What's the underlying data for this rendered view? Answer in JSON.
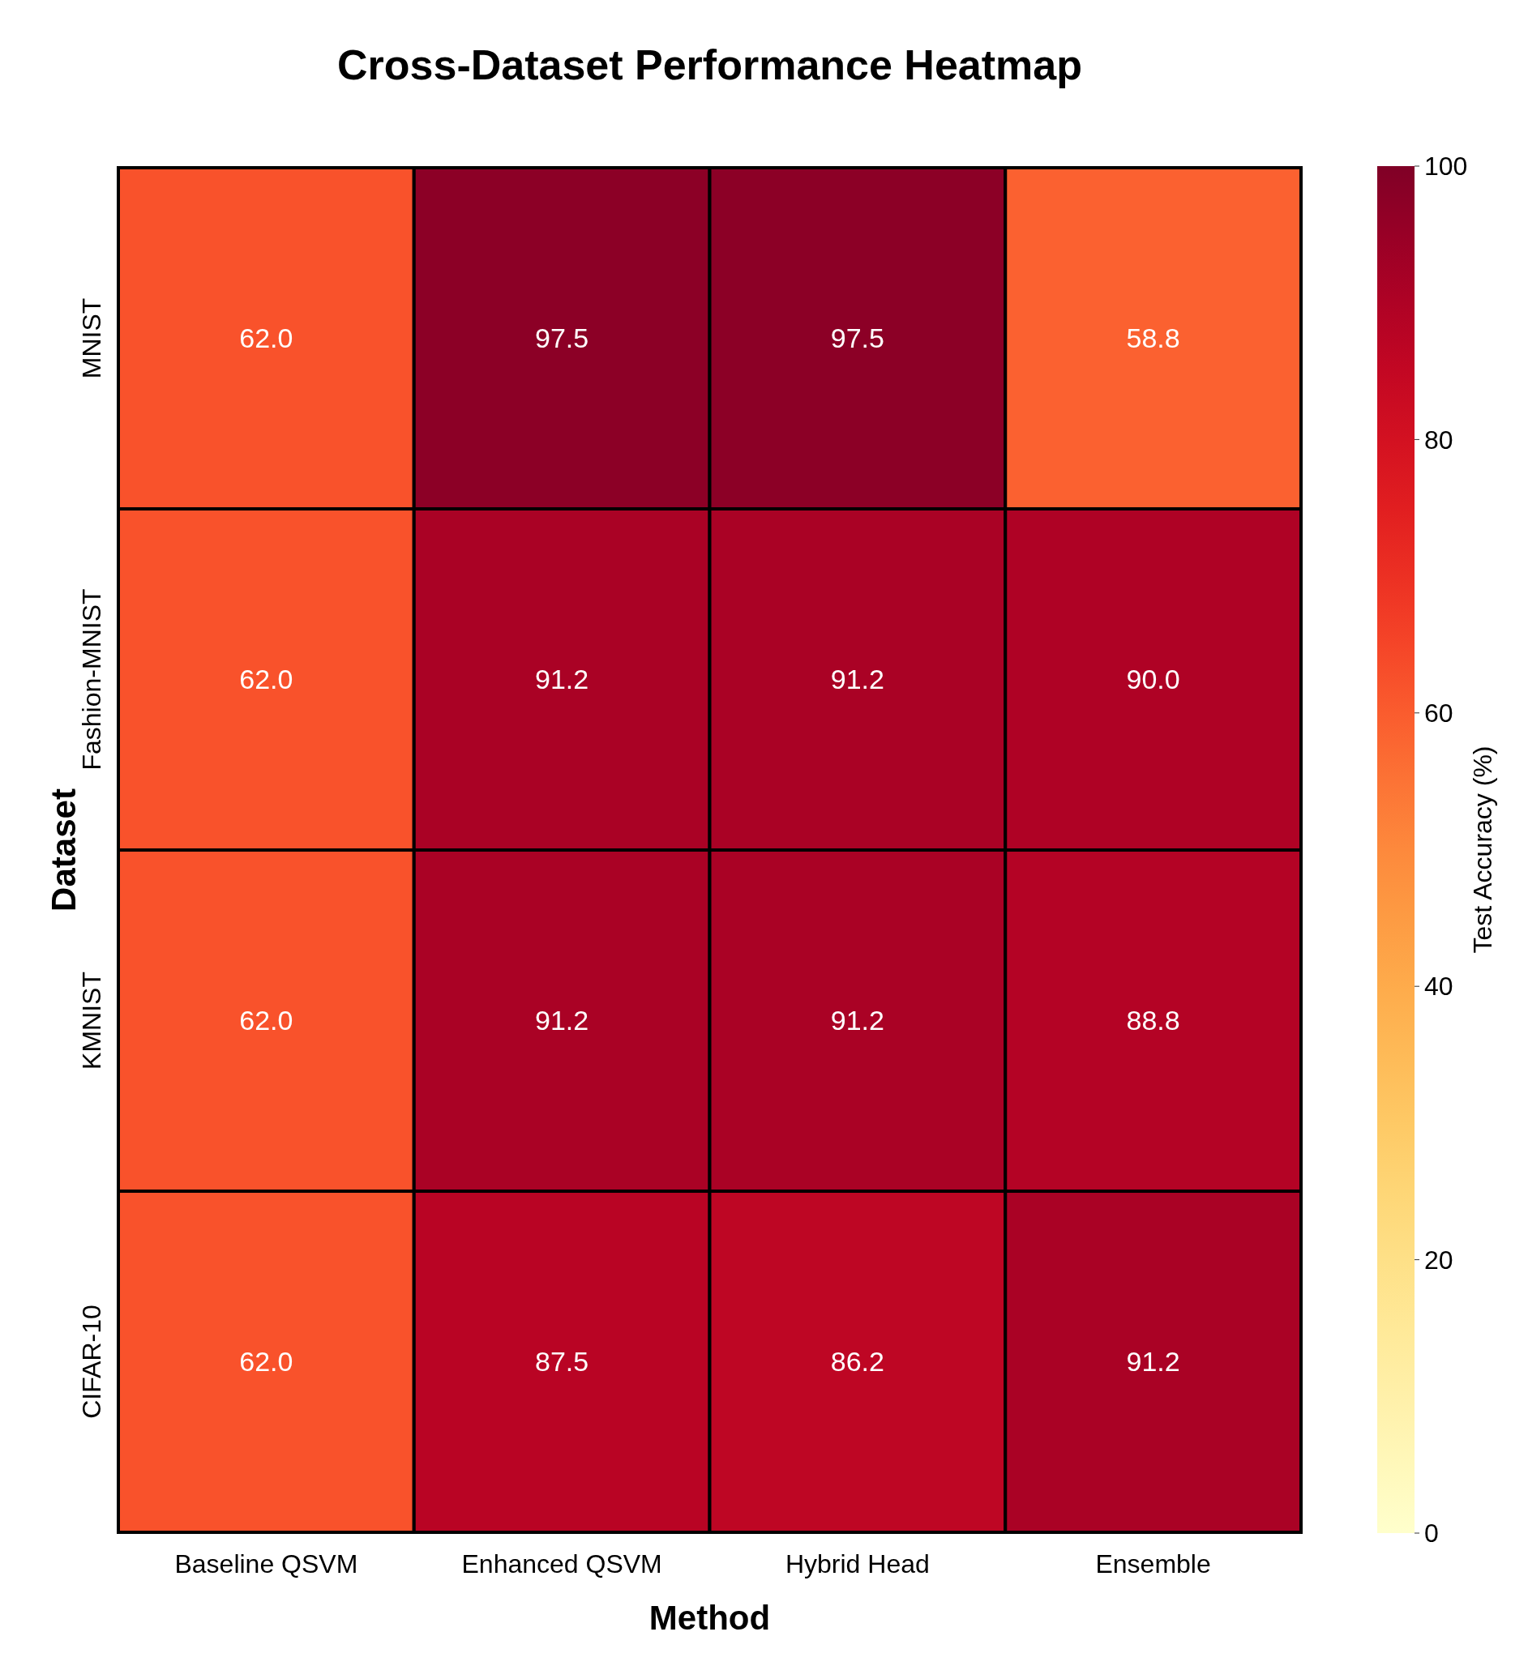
{
  "chart_data": {
    "type": "heatmap",
    "title": "Cross-Dataset Performance Heatmap",
    "xlabel": "Method",
    "ylabel": "Dataset",
    "clabel": "Test Accuracy (%)",
    "categories": [
      "Baseline QSVM",
      "Enhanced QSVM",
      "Hybrid Head",
      "Ensemble"
    ],
    "y_categories": [
      "MNIST",
      "Fashion-MNIST",
      "KMNIST",
      "CIFAR-10"
    ],
    "cells": [
      [
        62.0,
        97.5,
        97.5,
        58.8
      ],
      [
        62.0,
        91.2,
        91.2,
        90.0
      ],
      [
        62.0,
        91.2,
        91.2,
        88.8
      ],
      [
        62.0,
        87.5,
        86.2,
        91.2
      ]
    ],
    "cell_labels": [
      [
        "62.0",
        "97.5",
        "97.5",
        "58.8"
      ],
      [
        "62.0",
        "91.2",
        "91.2",
        "90.0"
      ],
      [
        "62.0",
        "91.2",
        "91.2",
        "88.8"
      ],
      [
        "62.0",
        "87.5",
        "86.2",
        "91.2"
      ]
    ],
    "clim": [
      0,
      100
    ],
    "cticks": [
      0,
      20,
      40,
      60,
      80,
      100
    ]
  }
}
